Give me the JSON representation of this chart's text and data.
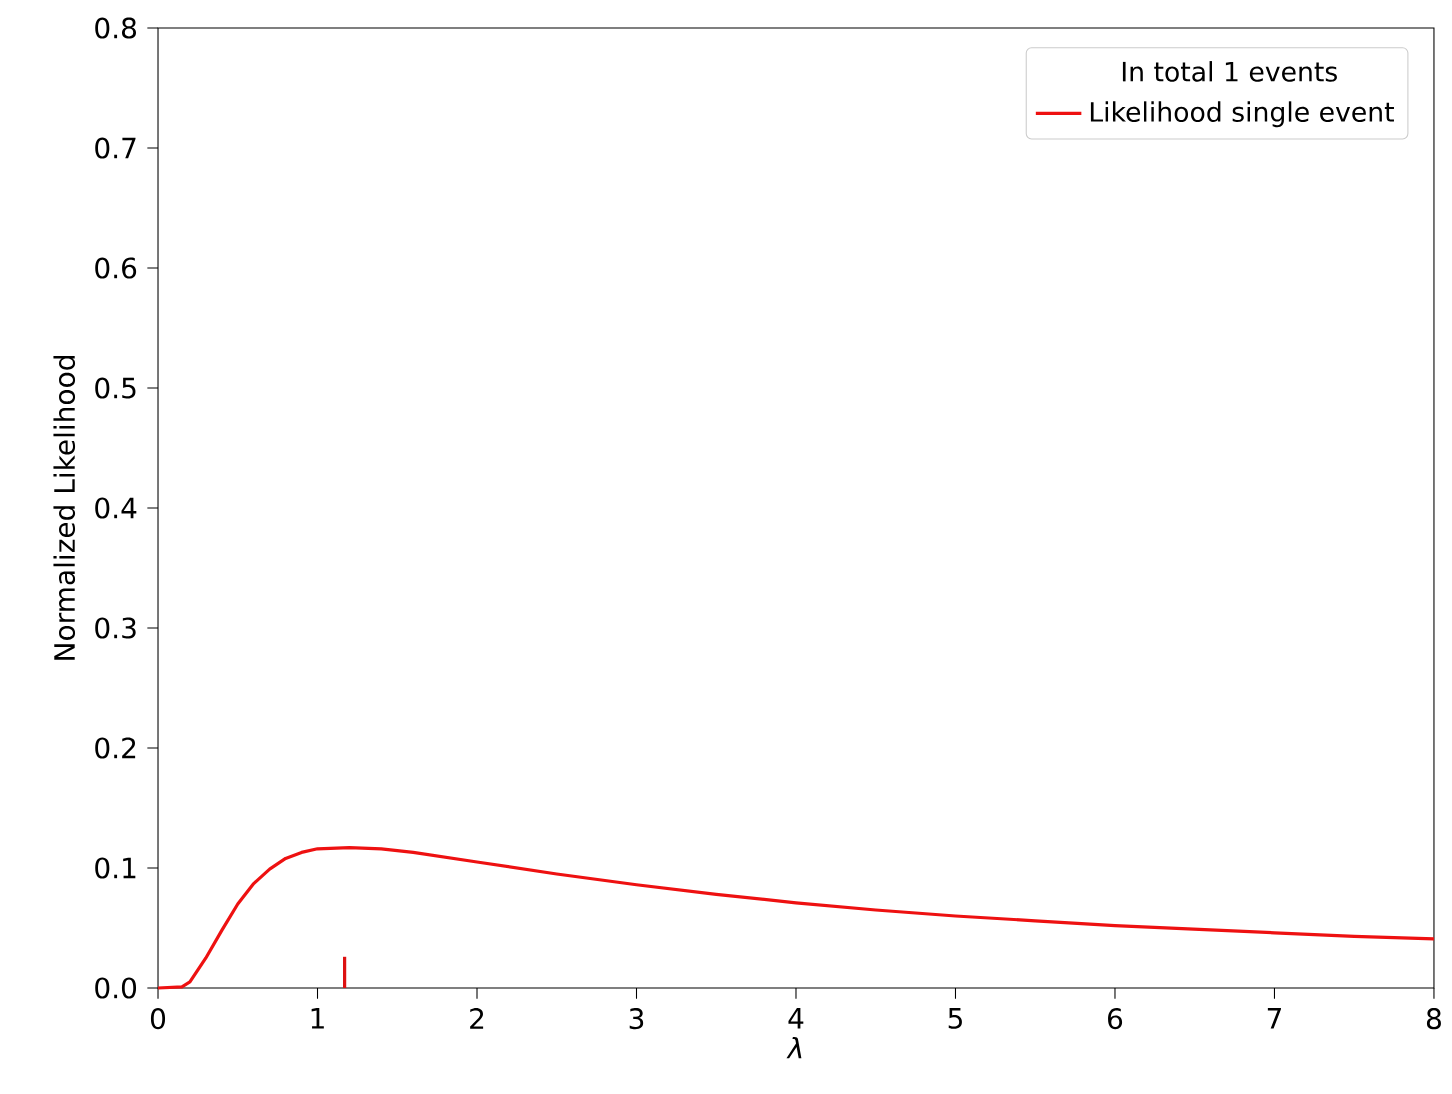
{
  "chart_data": {
    "type": "line",
    "xlabel": "λ",
    "ylabel": "Normalized Likelihood",
    "legend_title": "In total 1 events",
    "legend": "top right",
    "xlim": [
      0,
      8
    ],
    "ylim": [
      0,
      0.8
    ],
    "xticks": [
      0,
      1,
      2,
      3,
      4,
      5,
      6,
      7,
      8
    ],
    "yticks": [
      {
        "value": 0,
        "label": "0.0"
      },
      {
        "value": 0.1,
        "label": "0.1"
      },
      {
        "value": 0.2,
        "label": "0.2"
      },
      {
        "value": 0.3,
        "label": "0.3"
      },
      {
        "value": 0.4,
        "label": "0.4"
      },
      {
        "value": 0.5,
        "label": "0.5"
      },
      {
        "value": 0.6,
        "label": "0.6"
      },
      {
        "value": 0.7,
        "label": "0.7"
      },
      {
        "value": 0.8,
        "label": "0.8"
      }
    ],
    "series": [
      {
        "name": "Likelihood single event",
        "color": "#ee1111",
        "x": [
          0,
          0.15,
          0.2,
          0.3,
          0.4,
          0.5,
          0.6,
          0.7,
          0.8,
          0.9,
          1.0,
          1.2,
          1.4,
          1.6,
          2,
          2.5,
          3,
          3.5,
          4,
          4.5,
          5,
          5.5,
          6,
          6.5,
          7,
          7.5,
          8
        ],
        "values": [
          0,
          0.001,
          0.005,
          0.025,
          0.048,
          0.07,
          0.087,
          0.099,
          0.108,
          0.113,
          0.116,
          0.117,
          0.116,
          0.113,
          0.105,
          0.095,
          0.086,
          0.078,
          0.071,
          0.065,
          0.06,
          0.056,
          0.052,
          0.049,
          0.046,
          0.043,
          0.041
        ]
      },
      {
        "color": "#dd1111",
        "x": [
          1.17,
          1.17
        ],
        "values": [
          0,
          0.026
        ]
      }
    ]
  }
}
